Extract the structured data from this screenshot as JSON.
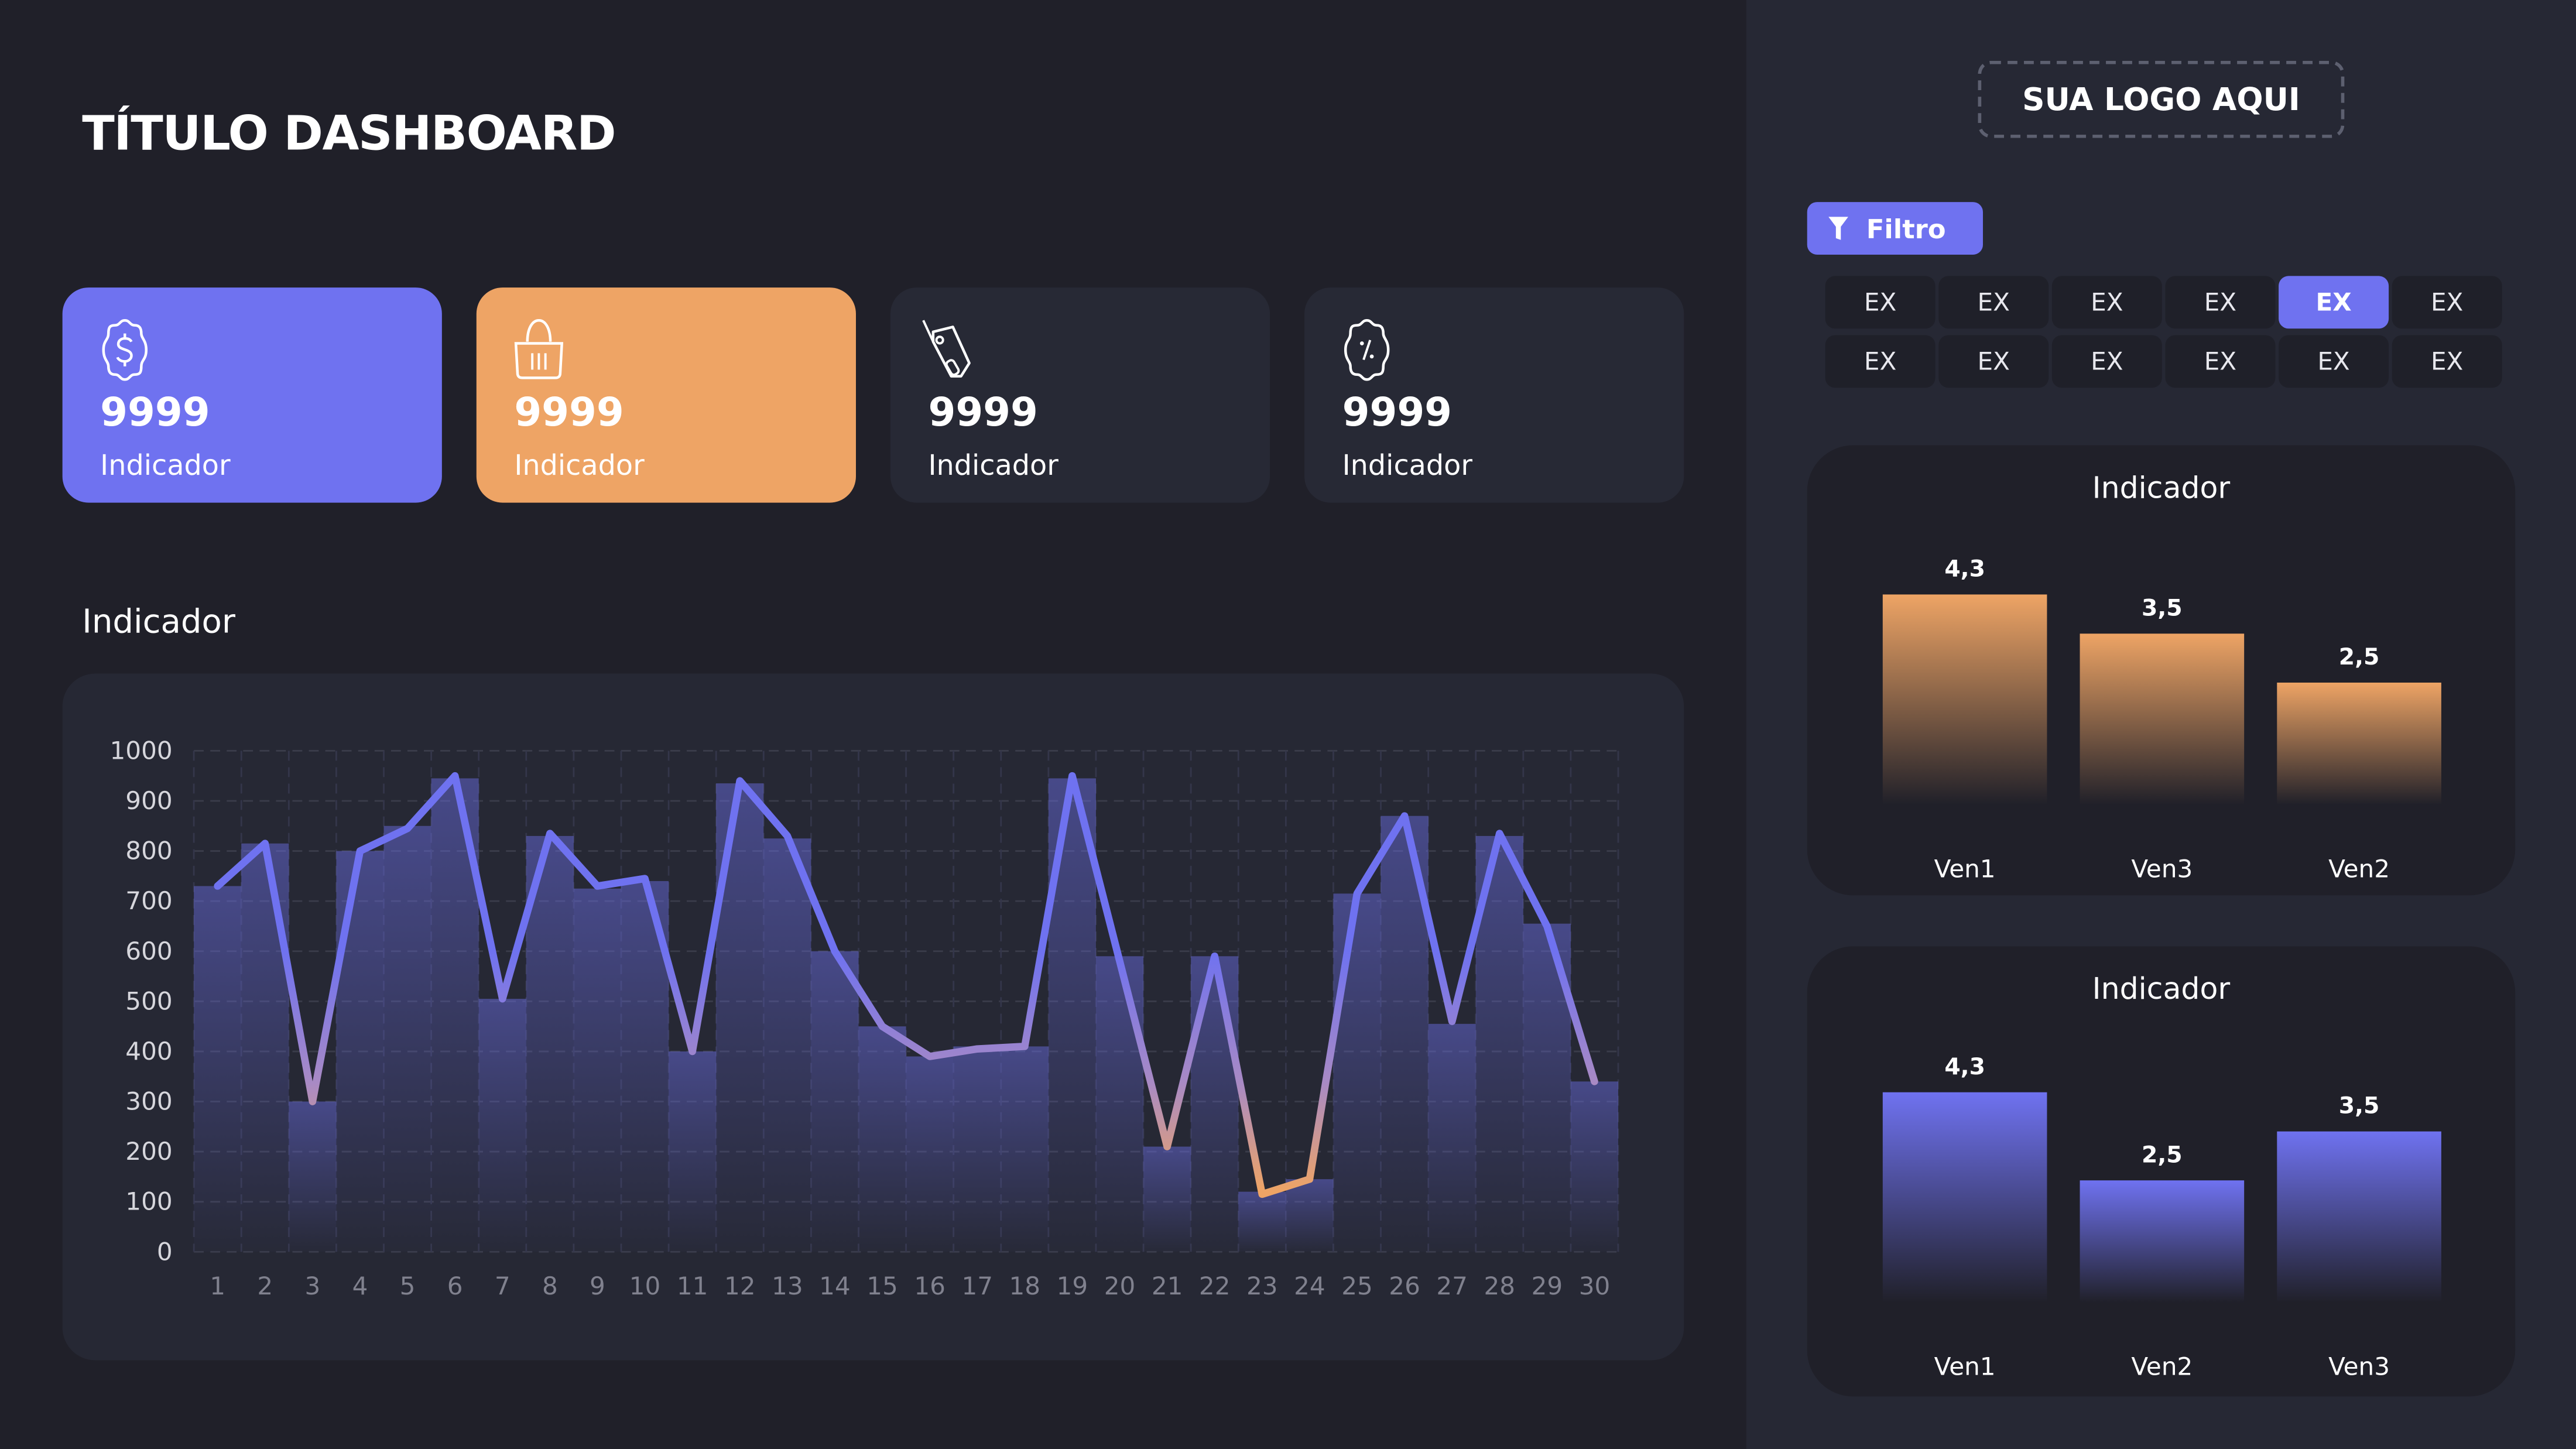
{
  "header": {
    "title": "TÍTULO DASHBOARD"
  },
  "kpis": [
    {
      "value": "9999",
      "label": "Indicador",
      "icon": "dollar-badge-icon",
      "color": "#6f72f0"
    },
    {
      "value": "9999",
      "label": "Indicador",
      "icon": "basket-icon",
      "color": "#eea465"
    },
    {
      "value": "9999",
      "label": "Indicador",
      "icon": "price-tag-icon",
      "color": "#272935"
    },
    {
      "value": "9999",
      "label": "Indicador",
      "icon": "percent-badge-icon",
      "color": "#272935"
    }
  ],
  "main_chart_label": "Indicador",
  "logo": {
    "text": "SUA LOGO AQUI"
  },
  "filter": {
    "label": "Filtro",
    "icon": "funnel-icon",
    "options": [
      "EX",
      "EX",
      "EX",
      "EX",
      "EX",
      "EX",
      "EX",
      "EX",
      "EX",
      "EX",
      "EX",
      "EX"
    ],
    "selected_index": 4
  },
  "colors": {
    "accent": "#6f72f0",
    "orange": "#eea465",
    "background": "#202029",
    "panel": "#262834"
  },
  "chart_data": [
    {
      "type": "bar+line",
      "title": "Indicador",
      "categories": [
        "1",
        "2",
        "3",
        "4",
        "5",
        "6",
        "7",
        "8",
        "9",
        "10",
        "11",
        "12",
        "13",
        "14",
        "15",
        "16",
        "17",
        "18",
        "19",
        "20",
        "21",
        "22",
        "23",
        "24",
        "25",
        "26",
        "27",
        "28",
        "29",
        "30"
      ],
      "series": [
        {
          "type": "bar",
          "values": [
            730,
            815,
            300,
            800,
            850,
            945,
            505,
            830,
            725,
            740,
            400,
            935,
            825,
            600,
            450,
            390,
            410,
            410,
            945,
            590,
            210,
            590,
            120,
            145,
            715,
            870,
            455,
            830,
            655,
            340
          ]
        },
        {
          "type": "line",
          "values": [
            730,
            815,
            300,
            800,
            845,
            950,
            505,
            835,
            730,
            745,
            400,
            940,
            830,
            600,
            450,
            390,
            405,
            410,
            950,
            580,
            210,
            590,
            115,
            145,
            715,
            870,
            460,
            835,
            650,
            340
          ]
        }
      ],
      "yticks": [
        "0",
        "100",
        "200",
        "300",
        "400",
        "500",
        "600",
        "700",
        "800",
        "900",
        "1000"
      ],
      "ylim": [
        0,
        1000
      ],
      "grid": true
    },
    {
      "type": "bar",
      "title": "Indicador",
      "categories": [
        "Ven1",
        "Ven3",
        "Ven2"
      ],
      "values": [
        4.3,
        3.5,
        2.5
      ],
      "labels": [
        "4,3",
        "3,5",
        "2,5"
      ],
      "color": "#eea465"
    },
    {
      "type": "bar",
      "title": "Indicador",
      "categories": [
        "Ven1",
        "Ven2",
        "Ven3"
      ],
      "values": [
        4.3,
        2.5,
        3.5
      ],
      "labels": [
        "4,3",
        "2,5",
        "3,5"
      ],
      "color": "#6f72f0"
    }
  ]
}
